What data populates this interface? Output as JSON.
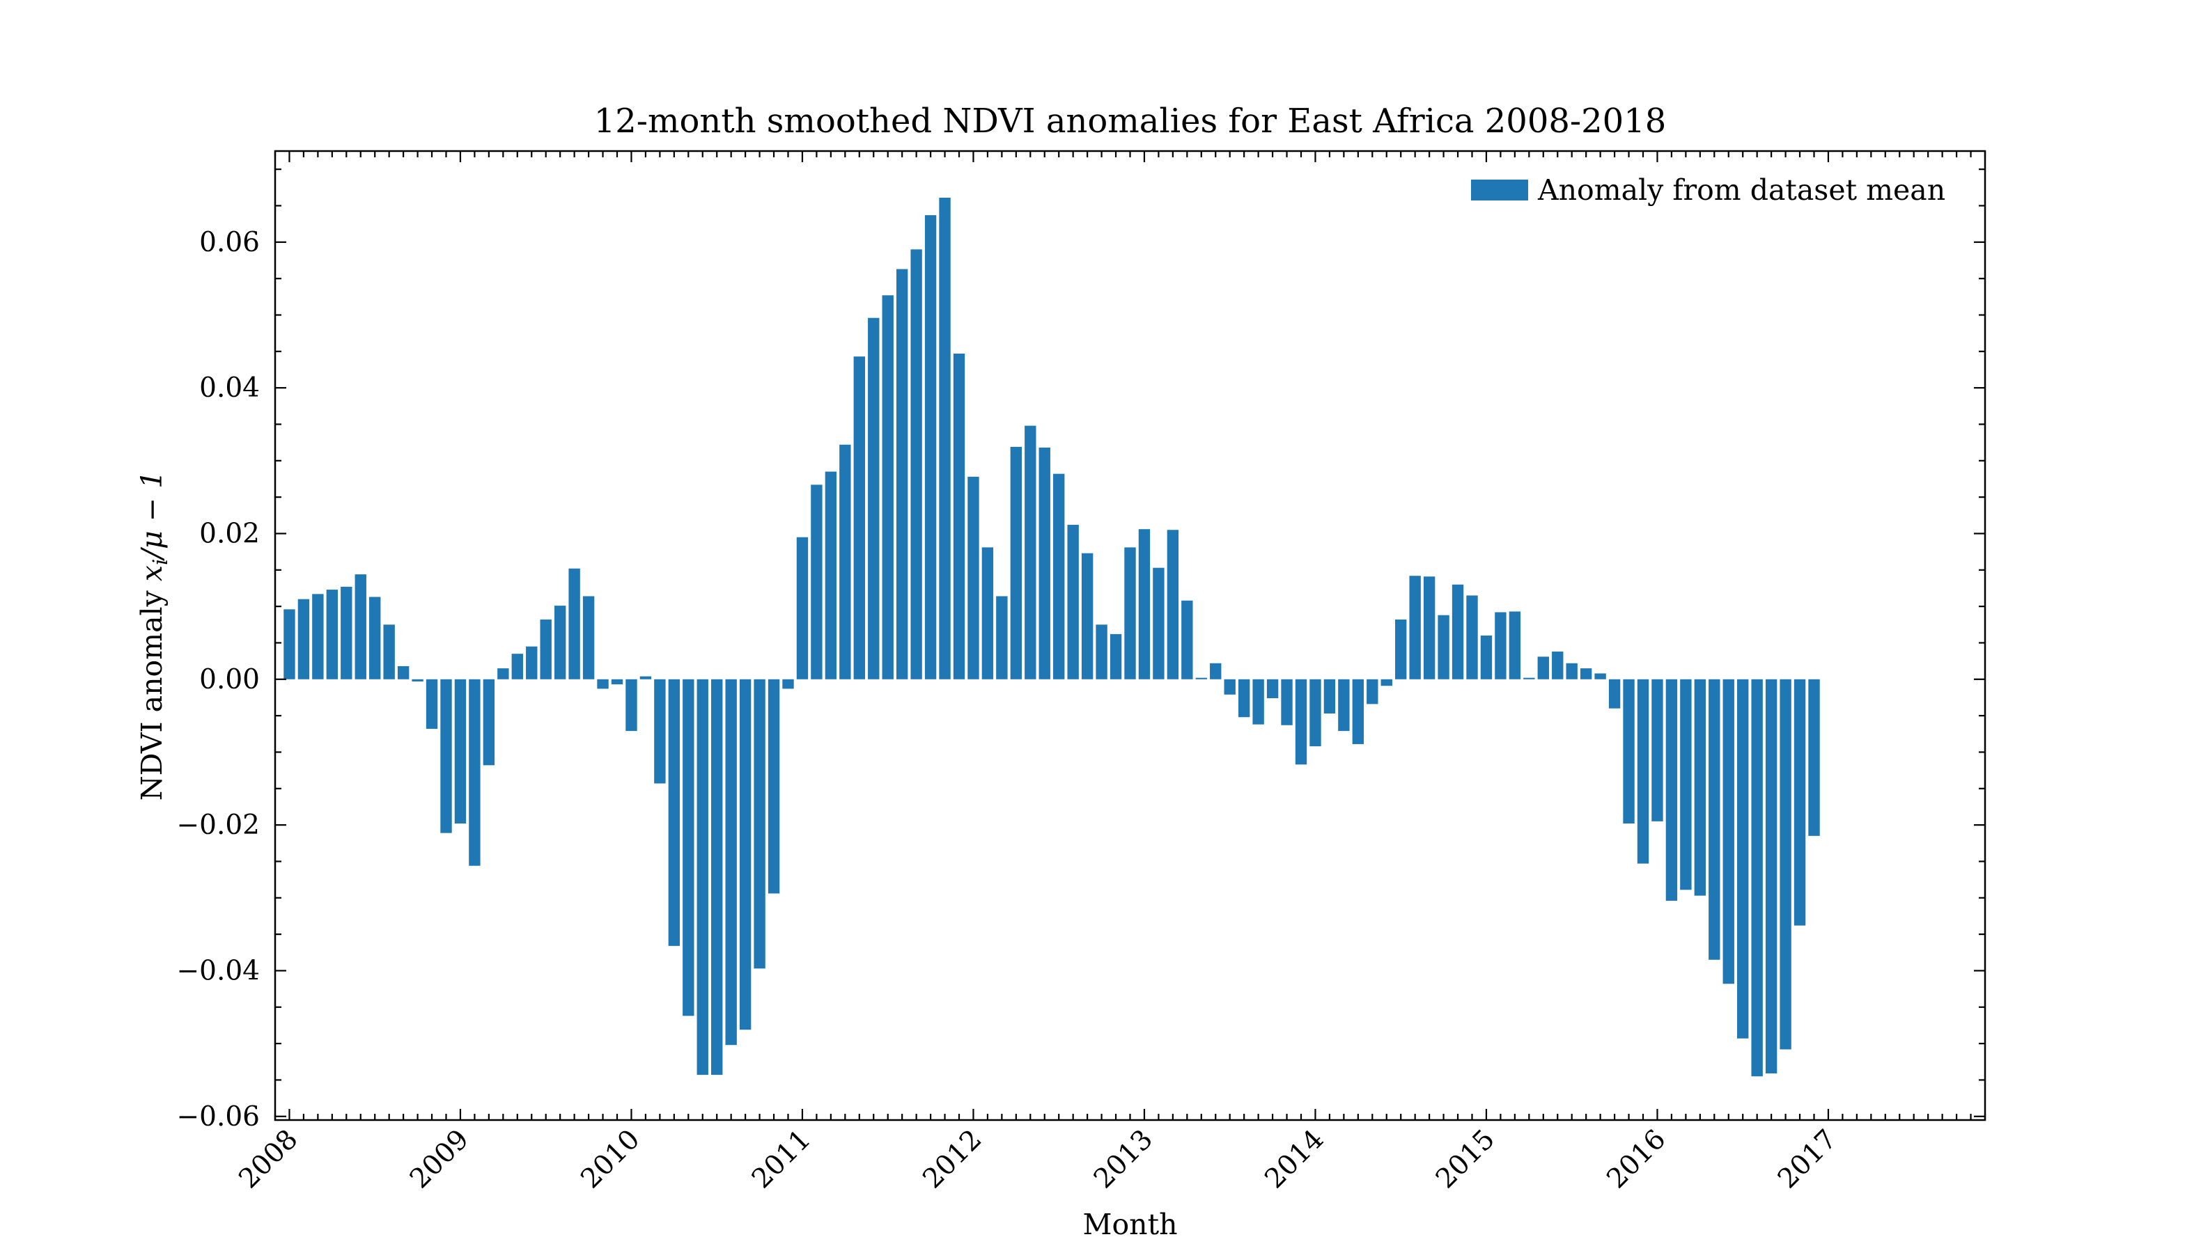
{
  "colors": {
    "bar": "#1f77b4",
    "axes": "#000000",
    "background": "#ffffff"
  },
  "chart_data": {
    "type": "bar",
    "title": "12-month smoothed NDVI anomalies for East Africa 2008-2018",
    "xlabel": "Month",
    "ylabel": "NDVI anomaly x_i/μ − 1",
    "ylabel_parts": {
      "main": "NDVI anomaly ",
      "var": "x",
      "sub": "i",
      "rest": "/μ − 1"
    },
    "legend": {
      "label": "Anomaly from dataset mean",
      "position": "top-right"
    },
    "grid": false,
    "ylim": [
      -0.0605,
      0.0725
    ],
    "xlim": [
      "2007-12",
      "2017-12"
    ],
    "yticks": [
      -0.06,
      -0.04,
      -0.02,
      0.0,
      0.02,
      0.04,
      0.06
    ],
    "ytick_labels": [
      "−0.06",
      "−0.04",
      "−0.02",
      "0.00",
      "0.02",
      "0.04",
      "0.06"
    ],
    "yminor_step": 0.005,
    "xticks": [
      "2008-01",
      "2009-01",
      "2010-01",
      "2011-01",
      "2012-01",
      "2013-01",
      "2014-01",
      "2015-01",
      "2016-01",
      "2017-01"
    ],
    "xtick_labels": [
      "2008",
      "2009",
      "2010",
      "2011",
      "2012",
      "2013",
      "2014",
      "2015",
      "2016",
      "2017"
    ],
    "xminor": "monthly",
    "start_month": "2008-01",
    "values": [
      0.0096,
      0.011,
      0.0117,
      0.0123,
      0.0127,
      0.0144,
      0.0113,
      0.0075,
      0.0018,
      -0.0003,
      -0.0068,
      -0.0211,
      -0.0198,
      -0.0256,
      -0.0118,
      0.0015,
      0.0035,
      0.0045,
      0.0082,
      0.0101,
      0.0152,
      0.0114,
      -0.0013,
      -0.0007,
      -0.0071,
      0.0004,
      -0.0143,
      -0.0366,
      -0.0462,
      -0.0543,
      -0.0543,
      -0.0502,
      -0.0481,
      -0.0397,
      -0.0294,
      -0.0013,
      0.0195,
      0.0267,
      0.0285,
      0.0322,
      0.0443,
      0.0496,
      0.0527,
      0.0563,
      0.059,
      0.0637,
      0.0661,
      0.0447,
      0.0278,
      0.0181,
      0.0114,
      0.0319,
      0.0348,
      0.0318,
      0.0282,
      0.0212,
      0.0173,
      0.0075,
      0.0062,
      0.0181,
      0.0206,
      0.0153,
      0.0205,
      0.0108,
      0.0002,
      0.0022,
      -0.0021,
      -0.0052,
      -0.0062,
      -0.0026,
      -0.0063,
      -0.0117,
      -0.0092,
      -0.0047,
      -0.0071,
      -0.0089,
      -0.0034,
      -0.0009,
      0.0082,
      0.0142,
      0.0141,
      0.0088,
      0.013,
      0.0115,
      0.006,
      0.0092,
      0.0093,
      0.0002,
      0.0031,
      0.0038,
      0.0022,
      0.0015,
      0.0008,
      -0.004,
      -0.0198,
      -0.0253,
      -0.0195,
      -0.0304,
      -0.0289,
      -0.0297,
      -0.0385,
      -0.0418,
      -0.0493,
      -0.0545,
      -0.0541,
      -0.0508,
      -0.0338,
      -0.0215
    ]
  }
}
